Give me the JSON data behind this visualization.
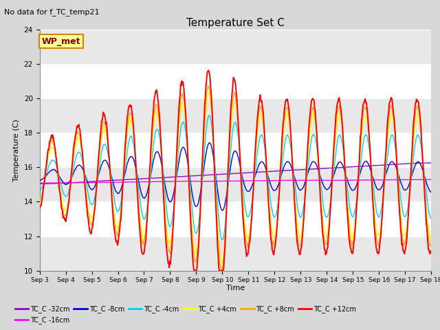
{
  "title": "Temperature Set C",
  "subtitle": "No data for f_TC_temp21",
  "xlabel": "Time",
  "ylabel": "Temperature (C)",
  "ylim": [
    10,
    24
  ],
  "xlim": [
    0,
    15
  ],
  "x_tick_labels": [
    "Sep 3",
    "Sep 4",
    "Sep 5",
    "Sep 6",
    "Sep 7",
    "Sep 8",
    "Sep 9",
    "Sep 10",
    "Sep 11",
    "Sep 12",
    "Sep 13",
    "Sep 14",
    "Sep 15",
    "Sep 16",
    "Sep 17",
    "Sep 18"
  ],
  "legend_box_label": "WP_met",
  "legend_box_facecolor": "#ffff99",
  "legend_box_edgecolor": "#cc8800",
  "series_colors": {
    "TC_C -32cm": "#9900cc",
    "TC_C -16cm": "#ff00ff",
    "TC_C -8cm": "#0000dd",
    "TC_C -4cm": "#00ccff",
    "TC_C +4cm": "#ffff00",
    "TC_C +8cm": "#ffaa00",
    "TC_C +12cm": "#ff0000"
  },
  "plot_bg_color": "#d8d8d8",
  "band_light": "#e8e8e8",
  "band_dark": "#d0d0d0",
  "grid_color": "#ffffff"
}
